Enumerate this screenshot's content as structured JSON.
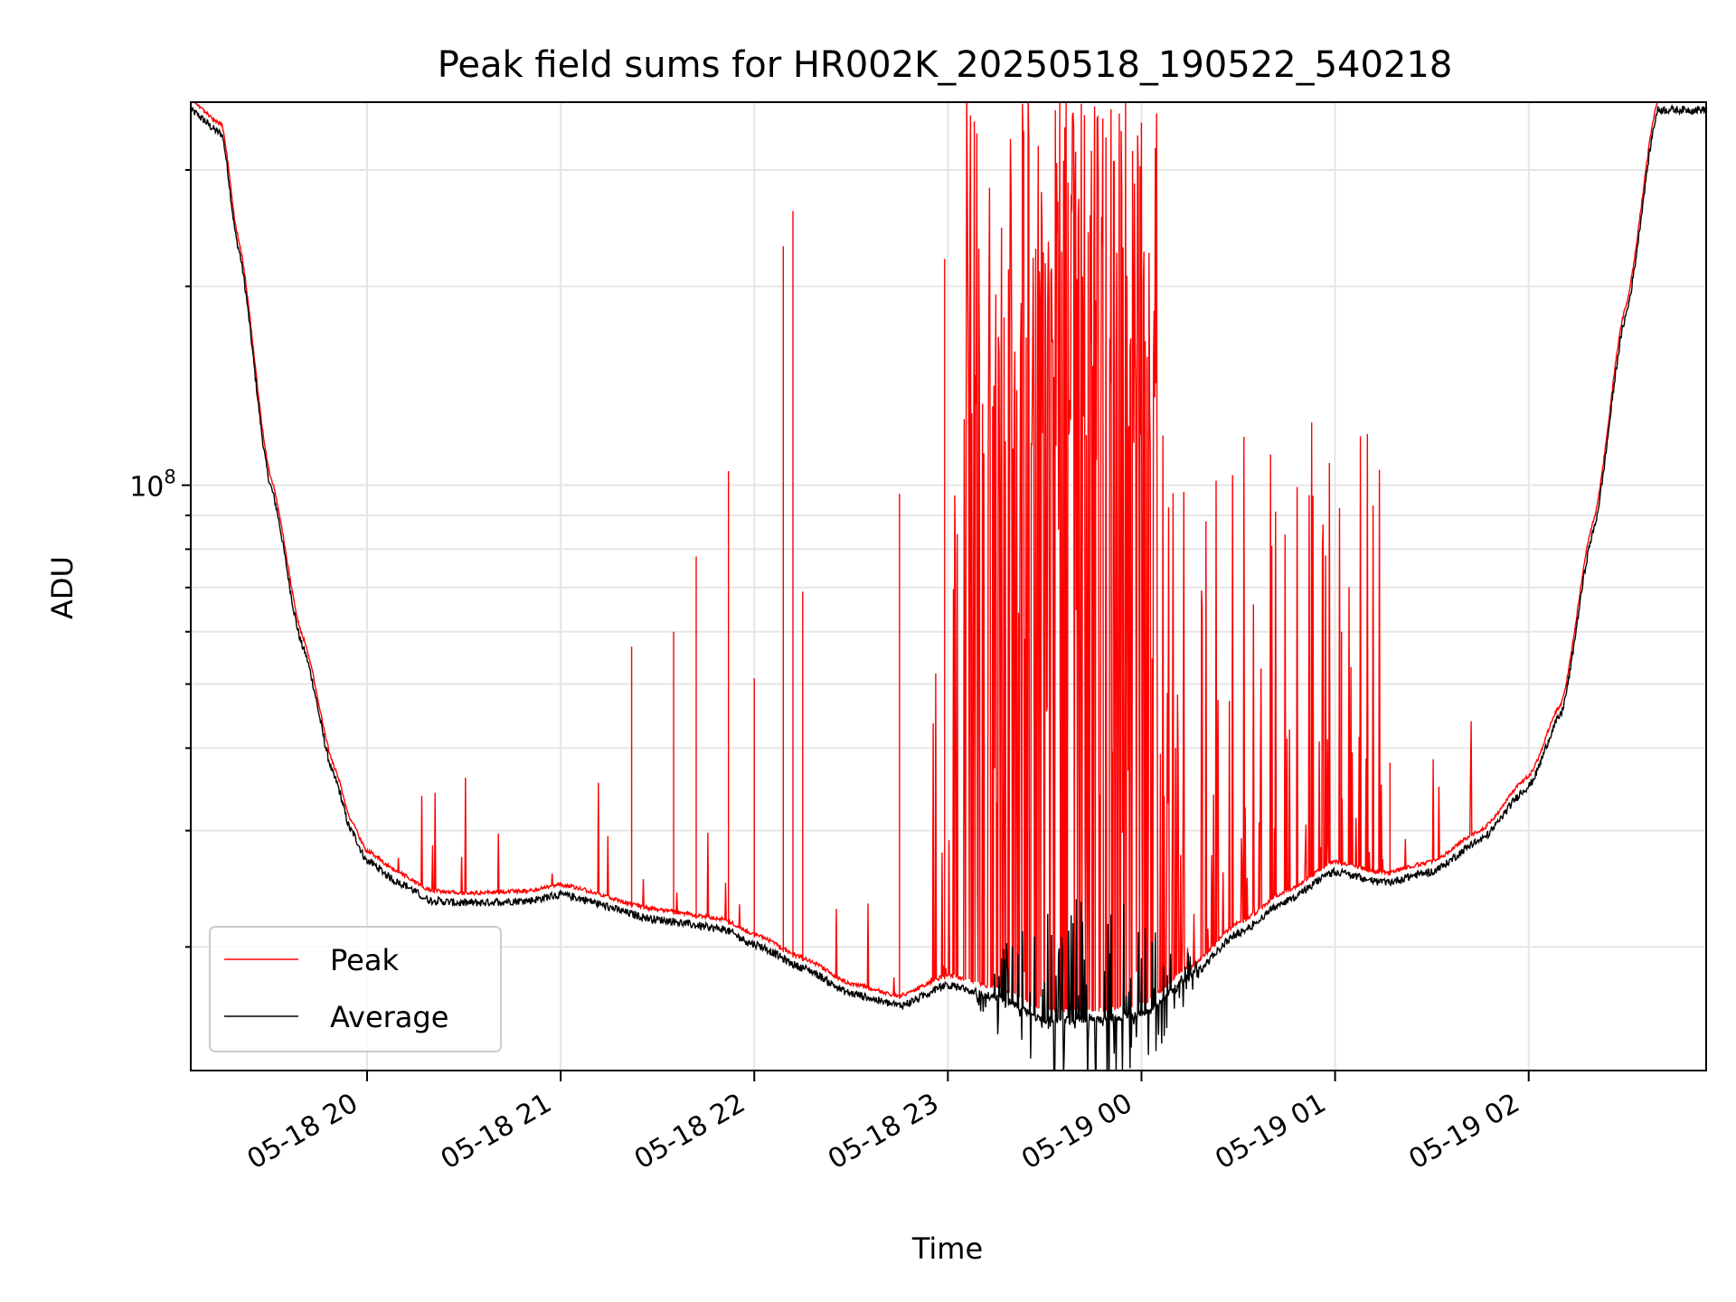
{
  "chart_data": {
    "type": "line",
    "title": "Peak field sums for HR002K_20250518_190522_540218",
    "xlabel": "Time",
    "ylabel": "ADU",
    "y_scale": "log",
    "ylim": [
      13000000,
      380000000
    ],
    "y_major_tick_label": "10^8",
    "y_major_tick_value": 100000000,
    "xlim": [
      "2025-05-18 19:05:22",
      "2025-05-19 02:55:00"
    ],
    "x_tick_labels": [
      "05-18 20",
      "05-18 21",
      "05-18 22",
      "05-18 23",
      "05-19 00",
      "05-19 01",
      "05-19 02"
    ],
    "x_ticks": [
      "2025-05-18 20:00",
      "2025-05-18 21:00",
      "2025-05-18 22:00",
      "2025-05-18 23:00",
      "2025-05-19 00:00",
      "2025-05-19 01:00",
      "2025-05-19 02:00"
    ],
    "grid": true,
    "legend_position": "lower-left",
    "series": [
      {
        "name": "Average",
        "color": "#000000",
        "x": [
          "2025-05-18 19:05",
          "2025-05-18 19:15",
          "2025-05-18 19:20",
          "2025-05-18 19:30",
          "2025-05-18 19:40",
          "2025-05-18 19:50",
          "2025-05-18 19:55",
          "2025-05-18 20:00",
          "2025-05-18 20:10",
          "2025-05-18 20:20",
          "2025-05-18 20:30",
          "2025-05-18 20:50",
          "2025-05-18 21:00",
          "2025-05-18 21:30",
          "2025-05-18 21:50",
          "2025-05-18 22:00",
          "2025-05-18 22:15",
          "2025-05-18 22:30",
          "2025-05-18 22:45",
          "2025-05-18 23:00",
          "2025-05-18 23:15",
          "2025-05-18 23:30",
          "2025-05-18 23:45",
          "2025-05-19 00:00",
          "2025-05-19 00:15",
          "2025-05-19 00:30",
          "2025-05-19 00:45",
          "2025-05-19 01:00",
          "2025-05-19 01:15",
          "2025-05-19 01:30",
          "2025-05-19 01:45",
          "2025-05-19 02:00",
          "2025-05-19 02:10",
          "2025-05-19 02:20",
          "2025-05-19 02:30",
          "2025-05-19 02:40",
          "2025-05-19 02:55"
        ],
        "y": [
          370000000,
          340000000,
          230000000,
          100000000,
          57000000,
          36000000,
          30000000,
          27000000,
          25000000,
          23500000,
          23300000,
          23500000,
          24000000,
          22000000,
          21300000,
          20200000,
          18600000,
          17000000,
          16300000,
          17500000,
          16800000,
          15500000,
          15500000,
          15800000,
          18000000,
          21000000,
          23500000,
          26000000,
          25000000,
          26000000,
          29000000,
          35000000,
          45000000,
          85000000,
          180000000,
          370000000,
          370000000
        ]
      },
      {
        "name": "Peak",
        "color": "#ff0000",
        "note": "",
        "spike_max": 380000000
      }
    ]
  },
  "legend": {
    "items": [
      "Peak",
      "Average"
    ]
  }
}
